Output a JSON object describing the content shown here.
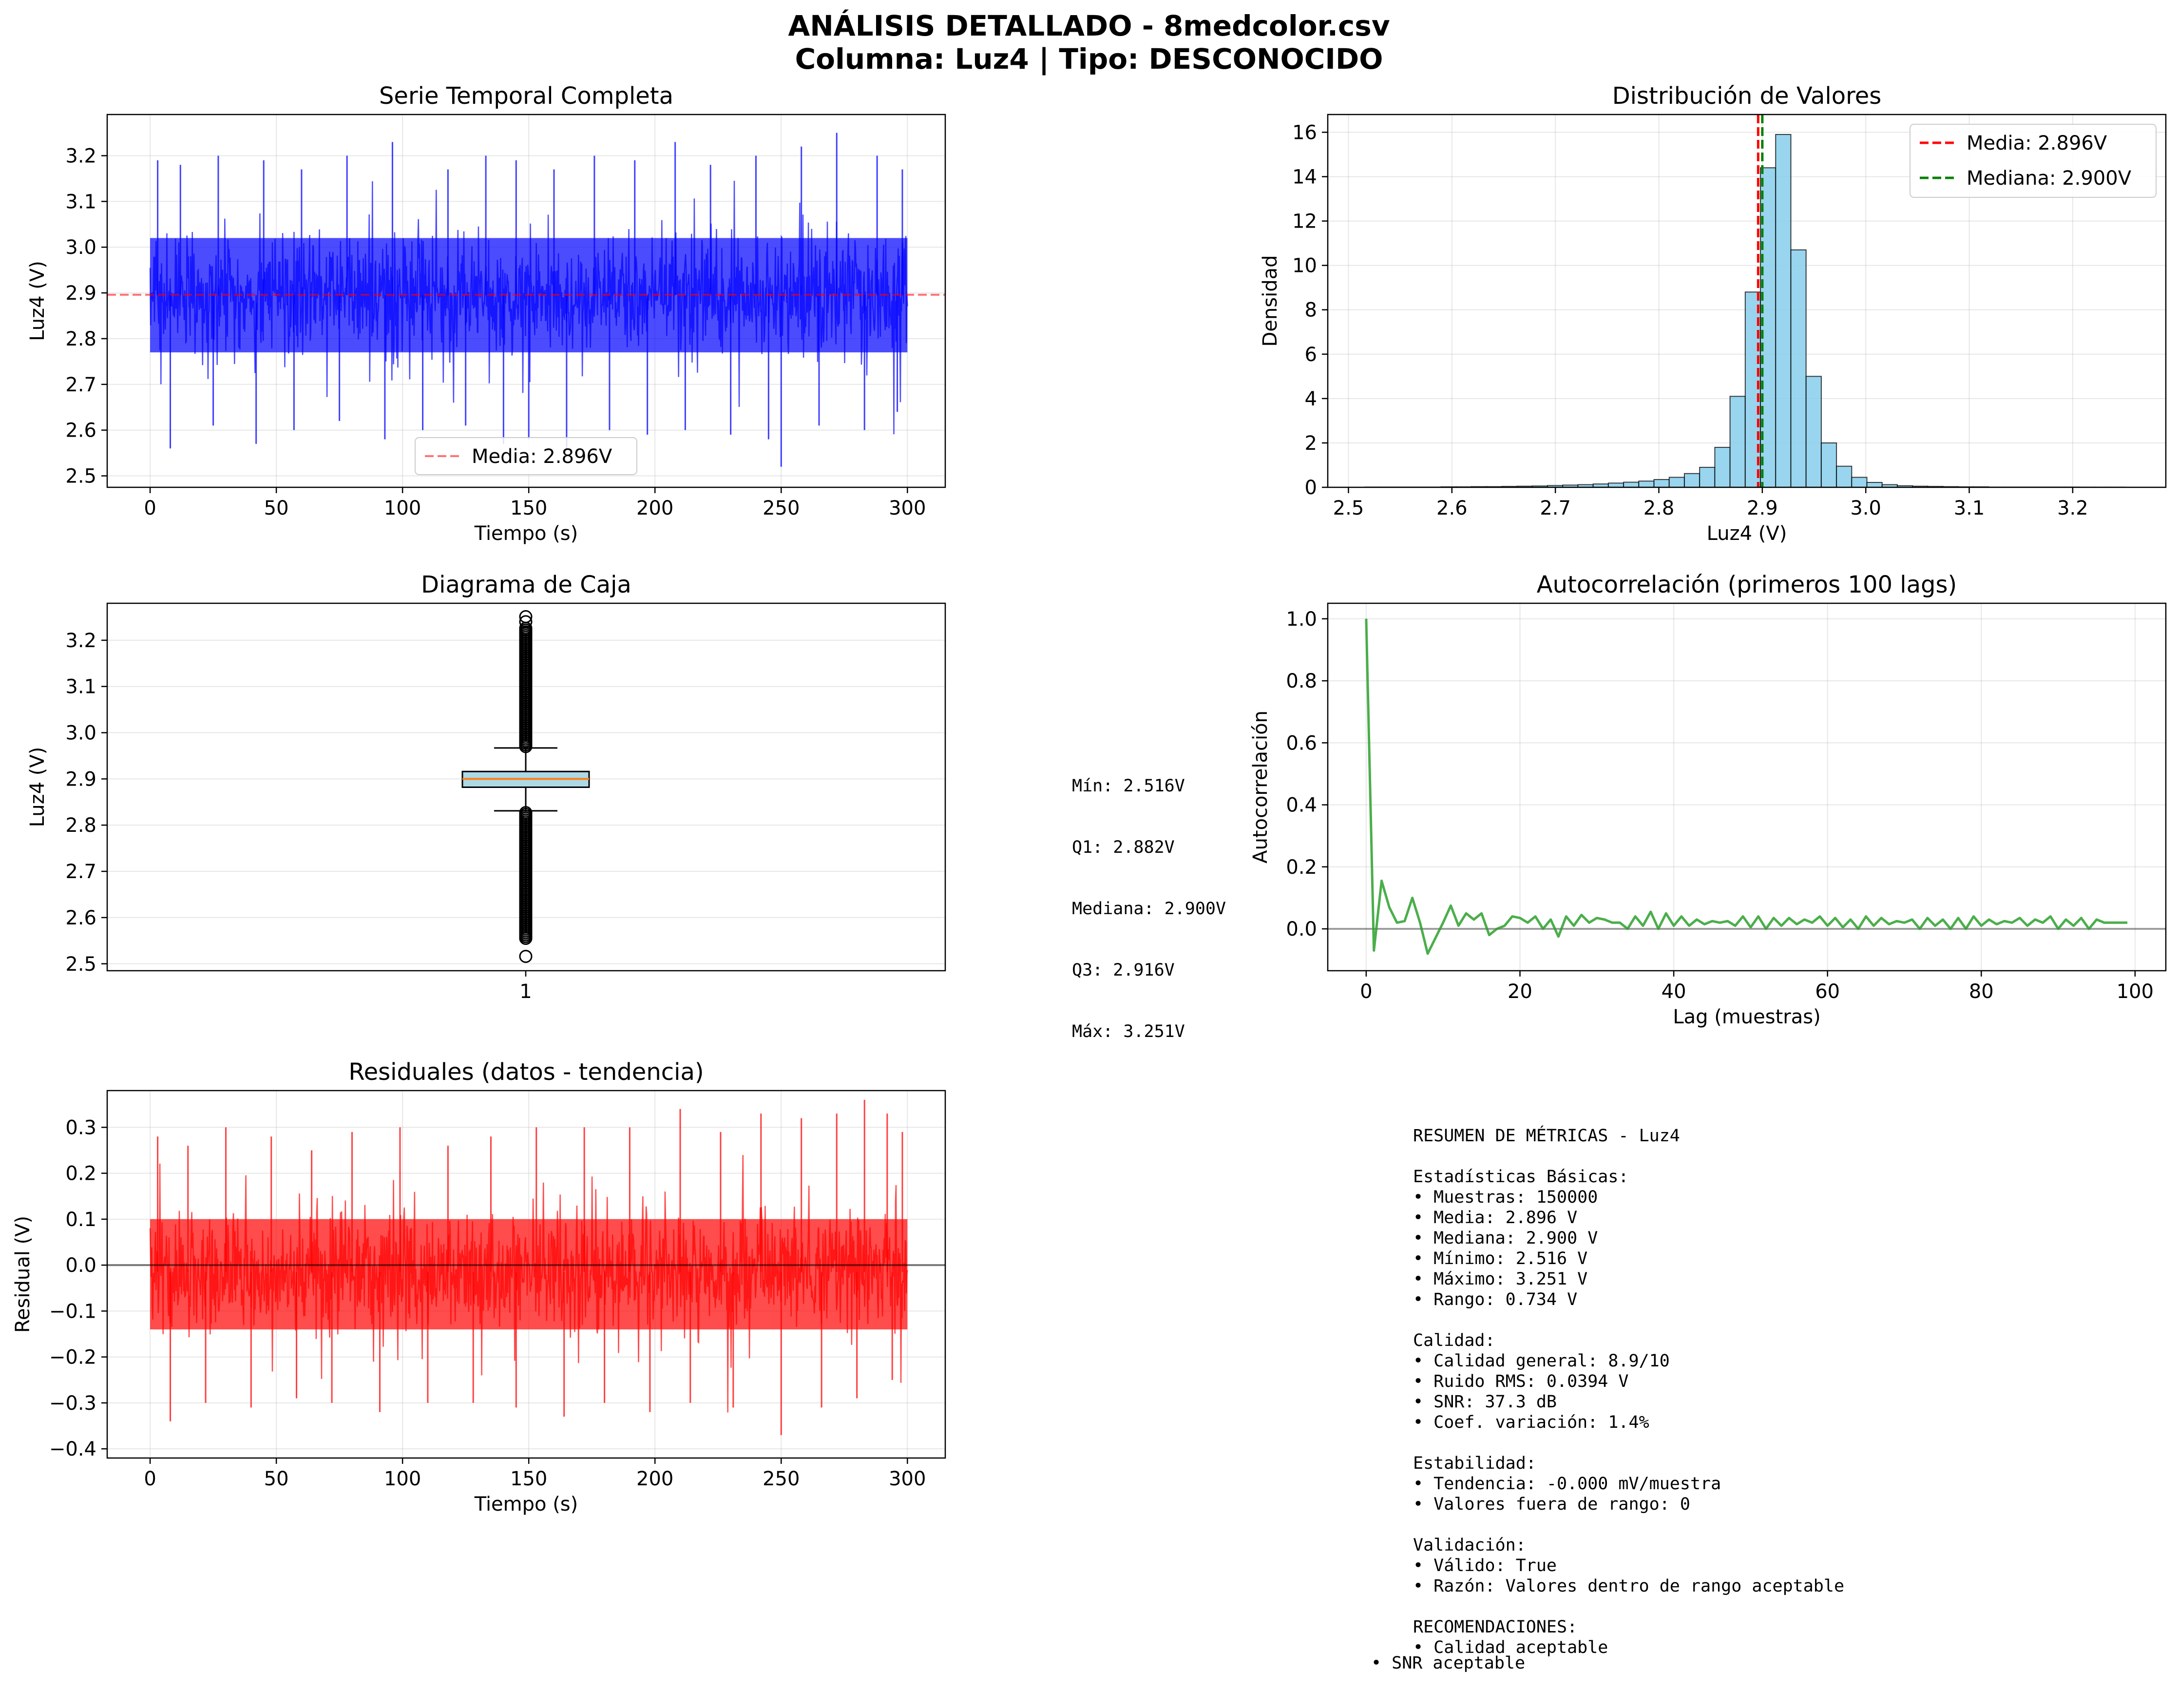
{
  "figure": {
    "title_line1": "ANÁLISIS DETALLADO - 8medcolor.csv",
    "title_line2": "Columna: Luz4 | Tipo: DESCONOCIDO"
  },
  "colors": {
    "series_blue": "#0000ff",
    "mean_red": "#ff0000",
    "median_green": "#008000",
    "hist_fill": "#87ceeb",
    "acf_green": "#2ca02c",
    "residual_red": "#ff0000",
    "box_fill": "#add8e6",
    "median_line": "#ff7f0e"
  },
  "chart_data": [
    {
      "id": "time_series",
      "type": "line",
      "title": "Serie Temporal Completa",
      "xlabel": "Tiempo (s)",
      "ylabel": "Luz4 (V)",
      "xlim": [
        -17,
        315
      ],
      "ylim": [
        2.475,
        3.29
      ],
      "xticks": [
        0,
        50,
        100,
        150,
        200,
        250,
        300
      ],
      "yticks": [
        2.5,
        2.6,
        2.7,
        2.8,
        2.9,
        3.0,
        3.1,
        3.2
      ],
      "grid": true,
      "legend_placement": "lower-center",
      "legend": [
        "Media: 2.896V"
      ],
      "mean_line": 2.896,
      "series": [
        {
          "name": "Luz4",
          "x_range": [
            0,
            300
          ],
          "band_core": [
            2.77,
            3.02
          ],
          "spikes_up": [
            [
              3,
              3.19
            ],
            [
              12,
              3.18
            ],
            [
              27,
              3.2
            ],
            [
              45,
              3.19
            ],
            [
              60,
              3.17
            ],
            [
              78,
              3.2
            ],
            [
              96,
              3.23
            ],
            [
              118,
              3.17
            ],
            [
              133,
              3.2
            ],
            [
              145,
              3.19
            ],
            [
              160,
              3.17
            ],
            [
              176,
              3.2
            ],
            [
              192,
              3.19
            ],
            [
              208,
              3.23
            ],
            [
              222,
              3.18
            ],
            [
              240,
              3.2
            ],
            [
              258,
              3.22
            ],
            [
              272,
              3.25
            ],
            [
              288,
              3.2
            ],
            [
              298,
              3.17
            ]
          ],
          "spikes_down": [
            [
              8,
              2.56
            ],
            [
              25,
              2.61
            ],
            [
              42,
              2.57
            ],
            [
              57,
              2.6
            ],
            [
              75,
              2.62
            ],
            [
              93,
              2.58
            ],
            [
              108,
              2.6
            ],
            [
              125,
              2.61
            ],
            [
              140,
              2.57
            ],
            [
              150,
              2.58
            ],
            [
              165,
              2.56
            ],
            [
              182,
              2.6
            ],
            [
              197,
              2.59
            ],
            [
              212,
              2.6
            ],
            [
              230,
              2.59
            ],
            [
              245,
              2.58
            ],
            [
              250,
              2.52
            ],
            [
              265,
              2.61
            ],
            [
              283,
              2.6
            ],
            [
              296,
              2.64
            ]
          ]
        }
      ]
    },
    {
      "id": "histogram",
      "type": "bar",
      "title": "Distribución de Valores",
      "xlabel": "Luz4 (V)",
      "ylabel": "Densidad",
      "xlim": [
        2.48,
        3.29
      ],
      "ylim": [
        0,
        16.8
      ],
      "xticks": [
        2.5,
        2.6,
        2.7,
        2.8,
        2.9,
        3.0,
        3.1,
        3.2
      ],
      "yticks": [
        0,
        2,
        4,
        6,
        8,
        10,
        12,
        14,
        16
      ],
      "grid": true,
      "legend_placement": "upper-right",
      "legend": [
        "Media: 2.896V",
        "Mediana: 2.900V"
      ],
      "mean_line": 2.896,
      "median_line": 2.9,
      "bin_start": 2.516,
      "bin_width": 0.0147,
      "values": [
        0.01,
        0.01,
        0.01,
        0.01,
        0.01,
        0.02,
        0.02,
        0.03,
        0.03,
        0.04,
        0.05,
        0.06,
        0.08,
        0.1,
        0.12,
        0.15,
        0.19,
        0.23,
        0.28,
        0.35,
        0.45,
        0.62,
        0.9,
        1.8,
        4.1,
        8.8,
        14.4,
        15.9,
        10.7,
        5.0,
        2.0,
        0.95,
        0.45,
        0.22,
        0.12,
        0.07,
        0.05,
        0.04,
        0.03,
        0.02,
        0.02,
        0.01,
        0.01,
        0.01,
        0.01,
        0.01,
        0.01,
        0.005,
        0.005,
        0.005
      ]
    },
    {
      "id": "boxplot",
      "type": "box",
      "title": "Diagrama de Caja",
      "xlabel": "",
      "ylabel": "Luz4 (V)",
      "ylim": [
        2.485,
        3.28
      ],
      "yticks": [
        2.5,
        2.6,
        2.7,
        2.8,
        2.9,
        3.0,
        3.1,
        3.2
      ],
      "xticks": [
        1
      ],
      "grid": true,
      "min": 2.516,
      "q1": 2.882,
      "median": 2.9,
      "q3": 2.916,
      "max": 3.251,
      "whisker_low": 2.831,
      "whisker_high": 2.967,
      "outlier_range_low": [
        2.555,
        2.831
      ],
      "outlier_range_high": [
        2.967,
        3.23
      ],
      "outliers_extreme": [
        2.516,
        3.251,
        3.24
      ],
      "annotation": [
        "Mín: 2.516V",
        "Q1: 2.882V",
        "Mediana: 2.900V",
        "Q3: 2.916V",
        "Máx: 3.251V"
      ]
    },
    {
      "id": "autocorrelation",
      "type": "line",
      "title": "Autocorrelación (primeros 100 lags)",
      "xlabel": "Lag (muestras)",
      "ylabel": "Autocorrelación",
      "xlim": [
        -5,
        104
      ],
      "ylim": [
        -0.135,
        1.05
      ],
      "xticks": [
        0,
        20,
        40,
        60,
        80,
        100
      ],
      "yticks": [
        0.0,
        0.2,
        0.4,
        0.6,
        0.8,
        1.0
      ],
      "grid": true,
      "x_start": 0,
      "values": [
        1.0,
        -0.07,
        0.155,
        0.07,
        0.02,
        0.025,
        0.1,
        0.02,
        -0.08,
        -0.03,
        0.02,
        0.075,
        0.01,
        0.05,
        0.03,
        0.05,
        -0.02,
        0.0,
        0.01,
        0.04,
        0.035,
        0.02,
        0.04,
        0.0,
        0.03,
        -0.025,
        0.04,
        0.01,
        0.045,
        0.02,
        0.035,
        0.03,
        0.02,
        0.02,
        0.0,
        0.04,
        0.01,
        0.055,
        0.0,
        0.05,
        0.01,
        0.04,
        0.01,
        0.03,
        0.015,
        0.025,
        0.02,
        0.025,
        0.01,
        0.04,
        0.005,
        0.04,
        0.0,
        0.035,
        0.01,
        0.035,
        0.015,
        0.03,
        0.02,
        0.04,
        0.01,
        0.035,
        0.005,
        0.03,
        0.0,
        0.04,
        0.01,
        0.035,
        0.015,
        0.025,
        0.02,
        0.03,
        0.0,
        0.035,
        0.01,
        0.03,
        0.0,
        0.035,
        0.0,
        0.04,
        0.01,
        0.03,
        0.015,
        0.025,
        0.02,
        0.035,
        0.01,
        0.03,
        0.02,
        0.04,
        0.0,
        0.03,
        0.01,
        0.035,
        0.0,
        0.03,
        0.02,
        0.02,
        0.02,
        0.02
      ]
    },
    {
      "id": "residuals",
      "type": "line",
      "title": "Residuales (datos - tendencia)",
      "xlabel": "Tiempo (s)",
      "ylabel": "Residual (V)",
      "xlim": [
        -17,
        315
      ],
      "ylim": [
        -0.42,
        0.38
      ],
      "xticks": [
        0,
        50,
        100,
        150,
        200,
        250,
        300
      ],
      "yticks": [
        -0.4,
        -0.3,
        -0.2,
        -0.1,
        0.0,
        0.1,
        0.2,
        0.3
      ],
      "grid": true,
      "zero_line": 0,
      "series": [
        {
          "name": "Residual",
          "x_range": [
            0,
            300
          ],
          "band_core": [
            -0.14,
            0.1
          ],
          "spikes_up": [
            [
              3,
              0.28
            ],
            [
              15,
              0.26
            ],
            [
              30,
              0.3
            ],
            [
              48,
              0.28
            ],
            [
              64,
              0.25
            ],
            [
              80,
              0.29
            ],
            [
              99,
              0.3
            ],
            [
              118,
              0.26
            ],
            [
              135,
              0.28
            ],
            [
              153,
              0.3
            ],
            [
              172,
              0.3
            ],
            [
              190,
              0.3
            ],
            [
              210,
              0.34
            ],
            [
              226,
              0.29
            ],
            [
              242,
              0.33
            ],
            [
              258,
              0.32
            ],
            [
              272,
              0.33
            ],
            [
              283,
              0.36
            ],
            [
              292,
              0.33
            ],
            [
              298,
              0.29
            ]
          ],
          "spikes_down": [
            [
              8,
              -0.34
            ],
            [
              22,
              -0.3
            ],
            [
              40,
              -0.31
            ],
            [
              58,
              -0.29
            ],
            [
              72,
              -0.3
            ],
            [
              91,
              -0.32
            ],
            [
              110,
              -0.3
            ],
            [
              128,
              -0.3
            ],
            [
              145,
              -0.31
            ],
            [
              164,
              -0.33
            ],
            [
              180,
              -0.3
            ],
            [
              198,
              -0.32
            ],
            [
              214,
              -0.3
            ],
            [
              231,
              -0.31
            ],
            [
              250,
              -0.37
            ],
            [
              266,
              -0.31
            ],
            [
              280,
              -0.29
            ],
            [
              294,
              -0.25
            ]
          ]
        }
      ]
    }
  ],
  "metrics": {
    "lines": [
      "RESUMEN DE MÉTRICAS - Luz4",
      "",
      "Estadísticas Básicas:",
      "• Muestras: 150000",
      "• Media: 2.896 V",
      "• Mediana: 2.900 V",
      "• Mínimo: 2.516 V",
      "• Máximo: 3.251 V",
      "• Rango: 0.734 V",
      "",
      "Calidad:",
      "• Calidad general: 8.9/10",
      "• Ruido RMS: 0.0394 V",
      "• SNR: 37.3 dB",
      "• Coef. variación: 1.4%",
      "",
      "Estabilidad:",
      "• Tendencia: -0.000 mV/muestra",
      "• Valores fuera de rango: 0",
      "",
      "Validación:",
      "• Válido: True",
      "• Razón: Valores dentro de rango aceptable",
      "",
      "RECOMENDACIONES:",
      "• Calidad aceptable"
    ],
    "last_line": "• SNR aceptable"
  }
}
